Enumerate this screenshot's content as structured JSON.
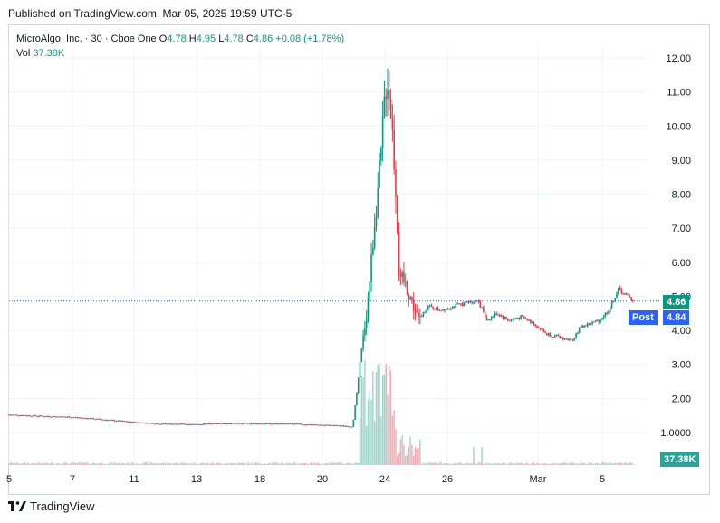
{
  "published": "Published on TradingView.com, Mar 05, 2025 19:59 UTC-5",
  "legend": {
    "symbol": "MicroAlgo, Inc. · 30 · Cboe One",
    "o_label": "O",
    "o_value": "4.78",
    "h_label": "H",
    "h_value": "4.95",
    "l_label": "L",
    "l_value": "4.78",
    "c_label": "C",
    "c_value": "4.86",
    "change": "+0.08 (+1.78%)",
    "vol_label": "Vol",
    "vol_value": "37.38K"
  },
  "tags": {
    "last_price": "4.86",
    "post_label": "Post",
    "post_price": "4.84",
    "volume": "37.38K"
  },
  "colors": {
    "up": "#089981",
    "down": "#f23645",
    "post": "#2962ff",
    "grid": "#f0f3fa",
    "volume_up": "#9fd4cc",
    "volume_down": "#f7a9af"
  },
  "brand": "TradingView",
  "chart_data": {
    "type": "candlestick",
    "title": "MicroAlgo, Inc. · 30 · Cboe One",
    "x_ticks": [
      "5",
      "7",
      "11",
      "13",
      "18",
      "20",
      "24",
      "26",
      "Mar",
      "5"
    ],
    "y_ticks": [
      "12.00",
      "11.00",
      "10.00",
      "9.00",
      "8.00",
      "7.00",
      "6.00",
      "5.00",
      "4.00",
      "3.00",
      "2.00",
      "1.0000"
    ],
    "ylim": [
      0.4,
      12.5
    ],
    "grid": true,
    "last_close": 4.86,
    "post_market": 4.84,
    "series": [
      {
        "name": "Price",
        "path_values": [
          [
            0,
            1.52
          ],
          [
            0.05,
            1.48
          ],
          [
            0.1,
            1.45
          ],
          [
            0.15,
            1.38
          ],
          [
            0.2,
            1.3
          ],
          [
            0.25,
            1.25
          ],
          [
            0.3,
            1.24
          ],
          [
            0.35,
            1.27
          ],
          [
            0.4,
            1.26
          ],
          [
            0.45,
            1.25
          ],
          [
            0.5,
            1.22
          ],
          [
            0.55,
            1.18
          ],
          [
            0.565,
            3.5
          ],
          [
            0.575,
            5.0
          ],
          [
            0.585,
            7.2
          ],
          [
            0.595,
            9.0
          ],
          [
            0.6,
            10.6
          ],
          [
            0.605,
            11.5
          ],
          [
            0.612,
            10.3
          ],
          [
            0.62,
            7.8
          ],
          [
            0.625,
            5.3
          ],
          [
            0.63,
            5.5
          ],
          [
            0.64,
            5.1
          ],
          [
            0.655,
            4.3
          ],
          [
            0.67,
            4.7
          ],
          [
            0.69,
            4.6
          ],
          [
            0.71,
            4.7
          ],
          [
            0.73,
            4.8
          ],
          [
            0.75,
            4.9
          ],
          [
            0.765,
            4.3
          ],
          [
            0.78,
            4.5
          ],
          [
            0.8,
            4.3
          ],
          [
            0.82,
            4.4
          ],
          [
            0.84,
            4.2
          ],
          [
            0.86,
            3.9
          ],
          [
            0.88,
            3.8
          ],
          [
            0.9,
            3.7
          ],
          [
            0.915,
            4.1
          ],
          [
            0.93,
            4.2
          ],
          [
            0.945,
            4.3
          ],
          [
            0.96,
            4.6
          ],
          [
            0.975,
            5.2
          ],
          [
            0.99,
            5.0
          ],
          [
            1.0,
            4.86
          ]
        ]
      }
    ]
  }
}
